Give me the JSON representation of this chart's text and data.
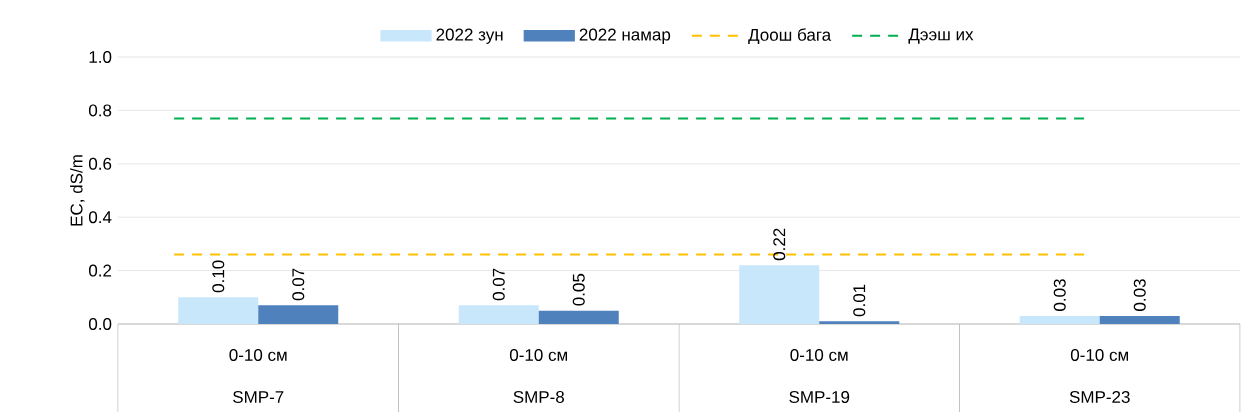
{
  "chart_data": {
    "type": "bar",
    "ylabel": "EC, dS/m",
    "categories": [
      "SMP-7",
      "SMP-8",
      "SMP-19",
      "SMP-23"
    ],
    "annotations": [
      "0-10 см",
      "0-10 см",
      "0-10 см",
      "0-10 см"
    ],
    "series": [
      {
        "name": "2022 зун",
        "color": "#c9e7fa",
        "values": [
          0.1,
          0.07,
          0.22,
          0.03
        ],
        "value_labels": [
          "0.10",
          "0.07",
          "0.22",
          "0.03"
        ]
      },
      {
        "name": "2022 намар",
        "color": "#4f81bd",
        "values": [
          0.07,
          0.05,
          0.01,
          0.03
        ],
        "value_labels": [
          "0.07",
          "0.05",
          "0.01",
          "0.03"
        ]
      }
    ],
    "ref_lines": [
      {
        "axis": "y",
        "value": 0.26,
        "label": "Доош бага",
        "color": "#ffc000",
        "line_style": "dashed"
      },
      {
        "axis": "y",
        "value": 0.77,
        "label": "Дээш их",
        "color": "#00b050",
        "line_style": "dashed"
      }
    ],
    "ylim": [
      0,
      1.0
    ],
    "yticks": [
      {
        "value": 0,
        "label": "0.0"
      },
      {
        "value": 0.2,
        "label": "0.2"
      },
      {
        "value": 0.4,
        "label": "0.4"
      },
      {
        "value": 0.6,
        "label": "0.6"
      },
      {
        "value": 0.8,
        "label": "0.8"
      },
      {
        "value": 1.0,
        "label": "1.0"
      }
    ],
    "grid": "y",
    "legend": "top"
  }
}
